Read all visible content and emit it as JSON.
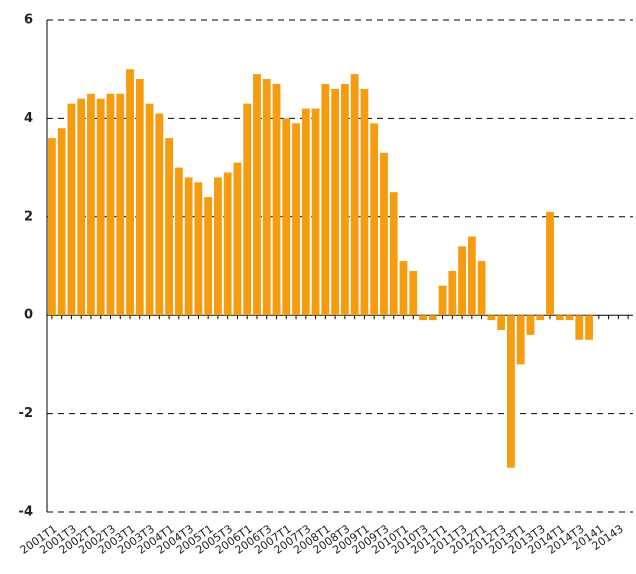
{
  "chart_data": {
    "type": "bar",
    "categories": [
      "2001T1",
      null,
      "2001T3",
      null,
      "2002T1",
      null,
      "2002T3",
      null,
      "2003T1",
      null,
      "2003T3",
      null,
      "2004T1",
      null,
      "2004T3",
      null,
      "2005T1",
      null,
      "2005T3",
      null,
      "2006T1",
      null,
      "2006T3",
      null,
      "2007T1",
      null,
      "2007T3",
      null,
      "2008T1",
      null,
      "2008T3",
      null,
      "2009T1",
      null,
      "2009T3",
      null,
      "2010T1",
      null,
      "2010T3",
      null,
      "2011T1",
      null,
      "2011T3",
      null,
      "2012T1",
      null,
      "2012T3",
      null,
      "2013T1",
      null,
      "2013T3",
      null,
      "2014T1",
      null,
      "2014T3",
      null,
      "20141",
      null,
      "20143",
      null
    ],
    "values": [
      3.6,
      3.8,
      4.3,
      4.4,
      4.5,
      4.4,
      4.5,
      4.5,
      5.0,
      4.8,
      4.3,
      4.1,
      3.6,
      3.0,
      2.8,
      2.7,
      2.4,
      2.8,
      2.9,
      3.1,
      4.3,
      4.9,
      4.8,
      4.7,
      4.0,
      3.9,
      4.2,
      4.2,
      4.7,
      4.6,
      4.7,
      4.9,
      4.6,
      3.9,
      3.3,
      2.5,
      1.1,
      0.9,
      -0.1,
      -0.1,
      0.6,
      0.9,
      1.4,
      1.6,
      1.1,
      -0.1,
      -0.3,
      -3.1,
      -1.0,
      -0.4,
      -0.1,
      2.1,
      -0.1,
      -0.1,
      -0.5,
      -0.5,
      null,
      null,
      null,
      null
    ],
    "color": "#f59c10",
    "ylim": [
      -4,
      6
    ],
    "yticks": [
      -4,
      -2,
      0,
      2,
      4,
      6
    ],
    "grid": true
  }
}
